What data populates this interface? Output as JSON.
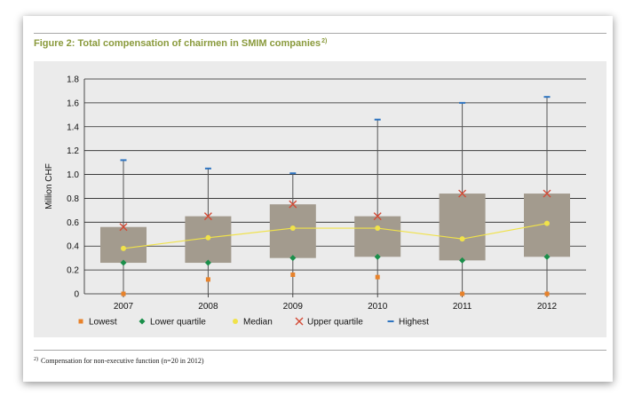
{
  "figure": {
    "title": "Figure 2: Total compensation of chairmen in SMIM companies",
    "title_note": "2)",
    "footnote_marker": "2)",
    "footnote": "Compensation for non-executive function (n=20 in 2012)"
  },
  "chart_data": {
    "type": "box",
    "title": "Figure 2: Total compensation of chairmen in SMIM companies",
    "ylabel": "Million CHF",
    "ylim": [
      0,
      1.8
    ],
    "yticks": [
      "0",
      "0.2",
      "0.4",
      "0.6",
      "0.8",
      "1.0",
      "1.2",
      "1.4",
      "1.6",
      "1.8"
    ],
    "ytick_values": [
      0,
      0.2,
      0.4,
      0.6,
      0.8,
      1.0,
      1.2,
      1.4,
      1.6,
      1.8
    ],
    "grid": true,
    "legend_position": "bottom",
    "categories": [
      "2007",
      "2008",
      "2009",
      "2010",
      "2011",
      "2012"
    ],
    "series": [
      {
        "name": "Lowest",
        "values": [
          0.0,
          0.12,
          0.16,
          0.14,
          0.0,
          0.0
        ]
      },
      {
        "name": "Lower quartile",
        "values": [
          0.26,
          0.26,
          0.3,
          0.31,
          0.28,
          0.31
        ]
      },
      {
        "name": "Median",
        "values": [
          0.38,
          0.47,
          0.55,
          0.55,
          0.46,
          0.59
        ]
      },
      {
        "name": "Upper quartile",
        "values": [
          0.56,
          0.65,
          0.75,
          0.65,
          0.84,
          0.84
        ]
      },
      {
        "name": "Highest",
        "values": [
          1.12,
          1.05,
          1.01,
          1.46,
          1.6,
          1.65
        ]
      }
    ],
    "colors": {
      "box": "#a39b8e",
      "whisker": "#555555",
      "lowest": "#e8822a",
      "lower_quartile": "#1a8f4a",
      "median": "#f0e24a",
      "upper_quartile": "#d44a35",
      "highest": "#2e74c0",
      "title": "#8a9a3c"
    }
  }
}
